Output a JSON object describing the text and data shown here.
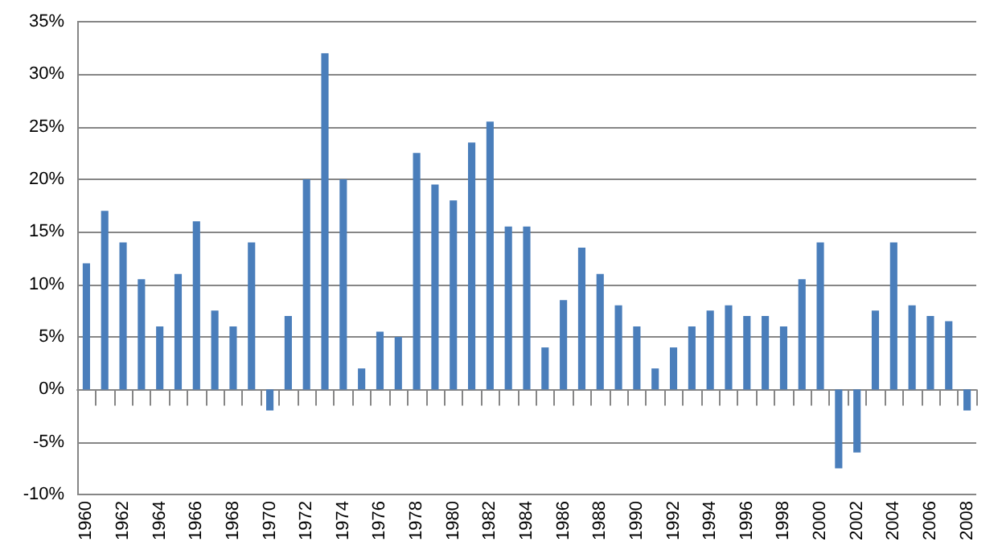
{
  "chart_data": {
    "type": "bar",
    "categories": [
      "1960",
      null,
      "1962",
      null,
      "1964",
      null,
      "1966",
      null,
      "1968",
      null,
      "1970",
      null,
      "1972",
      null,
      "1974",
      null,
      "1976",
      null,
      "1978",
      null,
      "1980",
      null,
      "1982",
      null,
      "1984",
      null,
      "1986",
      null,
      "1988",
      null,
      "1990",
      null,
      "1992",
      null,
      "1994",
      null,
      "1996",
      null,
      "1998",
      null,
      "2000",
      null,
      "2002",
      null,
      "2004",
      null,
      "2006",
      null,
      "2008"
    ],
    "values": [
      12,
      17,
      14,
      10.5,
      6,
      11,
      16,
      7.5,
      6,
      14,
      -2,
      7,
      20,
      32,
      20,
      2,
      5.5,
      5,
      22.5,
      19.5,
      18,
      23.5,
      25.5,
      15.5,
      15.5,
      4,
      8.5,
      13.5,
      11,
      8,
      6,
      2,
      4,
      6,
      7.5,
      8,
      7,
      7,
      6,
      10.5,
      14,
      -7.5,
      -6,
      7.5,
      14,
      8,
      7,
      6.5,
      -2
    ],
    "color": "#4a7ebb",
    "ylim": [
      -10,
      35
    ],
    "yticks": [
      {
        "value": -10,
        "label": "-10%"
      },
      {
        "value": -5,
        "label": "-5%"
      },
      {
        "value": 0,
        "label": "0%"
      },
      {
        "value": 5,
        "label": "5%"
      },
      {
        "value": 10,
        "label": "10%"
      },
      {
        "value": 15,
        "label": "15%"
      },
      {
        "value": 20,
        "label": "20%"
      },
      {
        "value": 25,
        "label": "25%"
      },
      {
        "value": 30,
        "label": "30%"
      },
      {
        "value": 35,
        "label": "35%"
      }
    ],
    "grid": "y"
  }
}
